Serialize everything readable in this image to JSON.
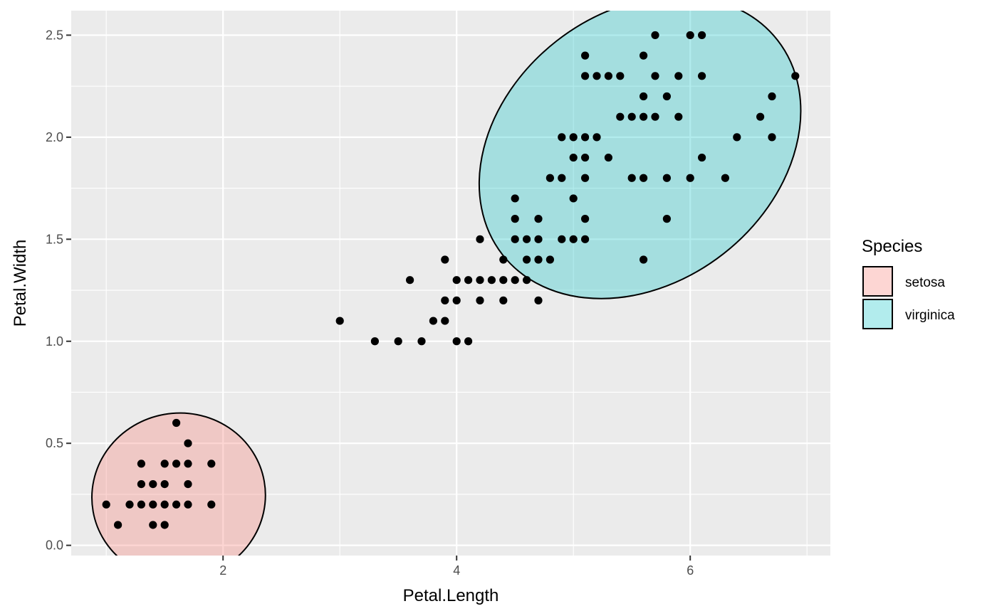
{
  "chart_data": {
    "type": "scatter",
    "title": "",
    "xlabel": "Petal.Length",
    "ylabel": "Petal.Width",
    "xlim": [
      0.7,
      7.2
    ],
    "ylim": [
      -0.05,
      2.62
    ],
    "x_ticks": [
      2,
      4,
      6
    ],
    "y_ticks": [
      0.0,
      0.5,
      1.0,
      1.5,
      2.0,
      2.5
    ],
    "x_tick_labels": [
      "2",
      "4",
      "6"
    ],
    "y_tick_labels": [
      "0.0",
      "0.5",
      "1.0",
      "1.5",
      "2.0",
      "2.5"
    ],
    "grid": true,
    "background": "#ebebeb",
    "point_color": "#000000",
    "legend": {
      "title": "Species",
      "position": "right",
      "entries": [
        {
          "label": "setosa",
          "color": "#F8766D"
        },
        {
          "label": "virginica",
          "color": "#00BFC4"
        }
      ]
    },
    "ellipses": [
      {
        "series": "setosa",
        "center": [
          1.62,
          0.24
        ],
        "color": "#F8766D"
      },
      {
        "series": "virginica",
        "center": [
          5.57,
          1.95
        ],
        "color": "#00BFC4"
      }
    ],
    "points": [
      [
        1.0,
        0.2
      ],
      [
        1.1,
        0.1
      ],
      [
        1.2,
        0.2
      ],
      [
        1.3,
        0.2
      ],
      [
        1.3,
        0.3
      ],
      [
        1.3,
        0.4
      ],
      [
        1.4,
        0.1
      ],
      [
        1.4,
        0.2
      ],
      [
        1.4,
        0.3
      ],
      [
        1.5,
        0.1
      ],
      [
        1.5,
        0.2
      ],
      [
        1.5,
        0.3
      ],
      [
        1.5,
        0.4
      ],
      [
        1.6,
        0.2
      ],
      [
        1.6,
        0.4
      ],
      [
        1.6,
        0.6
      ],
      [
        1.7,
        0.2
      ],
      [
        1.7,
        0.3
      ],
      [
        1.7,
        0.4
      ],
      [
        1.7,
        0.5
      ],
      [
        1.9,
        0.2
      ],
      [
        1.9,
        0.4
      ],
      [
        3.0,
        1.1
      ],
      [
        3.3,
        1.0
      ],
      [
        3.5,
        1.0
      ],
      [
        3.6,
        1.3
      ],
      [
        3.7,
        1.0
      ],
      [
        3.8,
        1.1
      ],
      [
        3.9,
        1.1
      ],
      [
        3.9,
        1.2
      ],
      [
        3.9,
        1.4
      ],
      [
        4.0,
        1.0
      ],
      [
        4.0,
        1.2
      ],
      [
        4.0,
        1.3
      ],
      [
        4.1,
        1.0
      ],
      [
        4.1,
        1.3
      ],
      [
        4.2,
        1.2
      ],
      [
        4.2,
        1.3
      ],
      [
        4.2,
        1.5
      ],
      [
        4.3,
        1.3
      ],
      [
        4.4,
        1.2
      ],
      [
        4.4,
        1.3
      ],
      [
        4.4,
        1.4
      ],
      [
        4.5,
        1.3
      ],
      [
        4.5,
        1.5
      ],
      [
        4.5,
        1.6
      ],
      [
        4.5,
        1.7
      ],
      [
        4.6,
        1.3
      ],
      [
        4.6,
        1.4
      ],
      [
        4.6,
        1.5
      ],
      [
        4.7,
        1.2
      ],
      [
        4.7,
        1.4
      ],
      [
        4.7,
        1.5
      ],
      [
        4.7,
        1.6
      ],
      [
        4.8,
        1.4
      ],
      [
        4.8,
        1.8
      ],
      [
        4.9,
        1.5
      ],
      [
        4.9,
        1.8
      ],
      [
        4.9,
        2.0
      ],
      [
        5.0,
        1.5
      ],
      [
        5.0,
        1.7
      ],
      [
        5.0,
        1.9
      ],
      [
        5.0,
        2.0
      ],
      [
        5.1,
        1.5
      ],
      [
        5.1,
        1.6
      ],
      [
        5.1,
        1.8
      ],
      [
        5.1,
        1.9
      ],
      [
        5.1,
        2.0
      ],
      [
        5.1,
        2.3
      ],
      [
        5.1,
        2.4
      ],
      [
        5.2,
        2.0
      ],
      [
        5.2,
        2.3
      ],
      [
        5.3,
        1.9
      ],
      [
        5.3,
        2.3
      ],
      [
        5.4,
        2.1
      ],
      [
        5.4,
        2.3
      ],
      [
        5.5,
        1.8
      ],
      [
        5.5,
        2.1
      ],
      [
        5.6,
        1.4
      ],
      [
        5.6,
        1.8
      ],
      [
        5.6,
        2.1
      ],
      [
        5.6,
        2.2
      ],
      [
        5.6,
        2.4
      ],
      [
        5.7,
        2.1
      ],
      [
        5.7,
        2.3
      ],
      [
        5.7,
        2.5
      ],
      [
        5.8,
        1.6
      ],
      [
        5.8,
        1.8
      ],
      [
        5.8,
        2.2
      ],
      [
        5.9,
        2.1
      ],
      [
        5.9,
        2.3
      ],
      [
        6.0,
        1.8
      ],
      [
        6.0,
        2.5
      ],
      [
        6.1,
        1.9
      ],
      [
        6.1,
        2.3
      ],
      [
        6.1,
        2.5
      ],
      [
        6.3,
        1.8
      ],
      [
        6.4,
        2.0
      ],
      [
        6.6,
        2.1
      ],
      [
        6.7,
        2.0
      ],
      [
        6.7,
        2.2
      ],
      [
        6.9,
        2.3
      ]
    ]
  }
}
